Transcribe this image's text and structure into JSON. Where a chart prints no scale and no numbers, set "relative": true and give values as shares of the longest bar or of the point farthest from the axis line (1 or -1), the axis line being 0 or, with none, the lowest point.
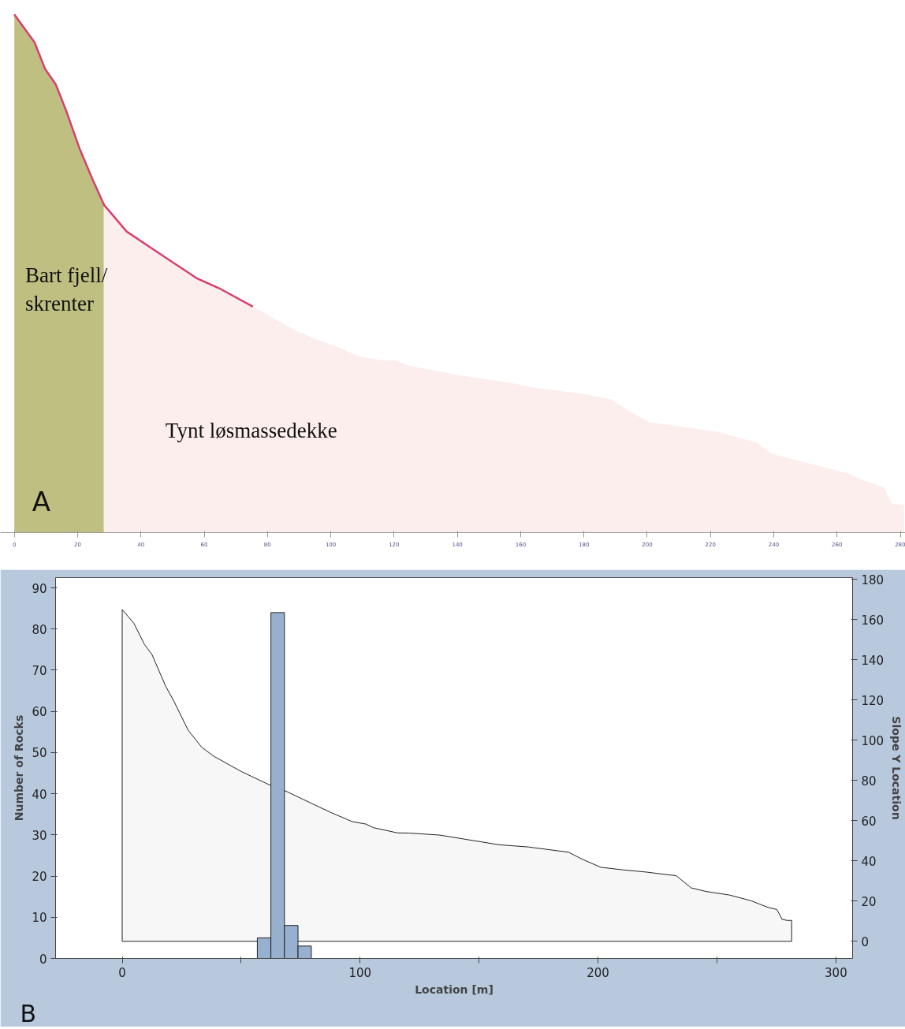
{
  "chart_data": [
    {
      "type": "area",
      "relative": true,
      "xlim": [
        -4.4,
        281.6
      ],
      "xticks": [
        0,
        20,
        40,
        60,
        80,
        100,
        120,
        140,
        160,
        180,
        200,
        220,
        240,
        260,
        280
      ],
      "annotations": [
        "A"
      ],
      "series": [
        {
          "name": "Bart fjell/\nskrenter",
          "color": "#bfbf82",
          "x": [
            0,
            6.4,
            9.7,
            13.1,
            16.4,
            20.5,
            24.7,
            28.3
          ],
          "values": [
            1.0,
            0.946,
            0.895,
            0.865,
            0.814,
            0.743,
            0.682,
            0.632
          ]
        },
        {
          "name": "Tynt løsmassedekke",
          "color": "#fdeeee",
          "x": [
            28.3,
            35.5,
            45.5,
            57.9,
            64.6,
            75.4,
            88.6,
            95.3,
            102.4,
            108.9,
            116.0,
            120.2,
            124.9,
            140.3,
            156.9,
            164.0,
            179.5,
            188.4,
            194.9,
            200.8,
            209.1,
            222.8,
            234.6,
            239.4,
            249.4,
            263.6,
            266.6,
            274.9,
            277.3,
            281.2
          ],
          "values": [
            0.632,
            0.581,
            0.54,
            0.49,
            0.472,
            0.436,
            0.391,
            0.373,
            0.358,
            0.34,
            0.333,
            0.333,
            0.322,
            0.304,
            0.289,
            0.28,
            0.268,
            0.258,
            0.232,
            0.213,
            0.206,
            0.194,
            0.174,
            0.152,
            0.136,
            0.114,
            0.105,
            0.087,
            0.056,
            0.054
          ]
        },
        {
          "type": "line",
          "color": "#d6406f",
          "x": [
            0,
            6.4,
            9.7,
            13.1,
            16.4,
            20.5,
            24.7,
            28.4,
            35.5,
            45.5,
            57.9,
            64.6,
            75.4
          ],
          "values": [
            1.0,
            0.946,
            0.895,
            0.865,
            0.814,
            0.743,
            0.682,
            0.632,
            0.581,
            0.54,
            0.49,
            0.472,
            0.436
          ]
        }
      ]
    },
    {
      "type": "histogram",
      "xlabel": "Location [m]",
      "ylabel": "Number of Rocks",
      "y2label": "Slope Y Location",
      "annotations": [
        "B"
      ],
      "bins": [
        56.8,
        62.5,
        68.2,
        73.9,
        79.5
      ],
      "values": [
        5,
        84,
        8,
        3
      ],
      "color": "#98b0cf",
      "xlim": [
        -28,
        307
      ],
      "xticks": [
        0,
        {
          "value": 50,
          "label": null
        },
        100,
        {
          "value": 150,
          "label": null
        },
        200,
        {
          "value": 250,
          "label": null
        },
        300
      ],
      "ylim": [
        0,
        92.5
      ],
      "yticks": [
        0,
        10,
        20,
        30,
        40,
        50,
        60,
        70,
        80,
        90
      ],
      "y2lim": [
        -8.5,
        180.8
      ],
      "y2ticks": [
        0,
        20,
        40,
        60,
        80,
        100,
        120,
        140,
        160,
        180
      ],
      "series": [
        {
          "type": "area",
          "axis": "y2",
          "color": "#f7f7f7",
          "x": [
            0,
            4.9,
            9.4,
            12.5,
            18.2,
            21.8,
            27.7,
            33.4,
            38.5,
            49.9,
            61.3,
            68.9,
            79.0,
            87.8,
            96.7,
            102.4,
            105.6,
            115.7,
            120.8,
            133.5,
            158.4,
            170.8,
            187.6,
            193.2,
            201.2,
            210.6,
            220.5,
            232.9,
            239.1,
            245.3,
            255.3,
            264.0,
            271.4,
            275.2,
            277.4,
            279.5,
            281.4
          ],
          "values": [
            164.9,
            158.1,
            147.5,
            142.6,
            127.0,
            119.2,
            105.0,
            96.5,
            92.0,
            84.5,
            78.1,
            74.6,
            68.9,
            64.0,
            59.5,
            58.3,
            56.5,
            53.9,
            53.8,
            52.8,
            48.0,
            46.9,
            44.3,
            40.9,
            36.8,
            35.5,
            34.4,
            32.6,
            26.6,
            24.8,
            23.0,
            20.3,
            16.9,
            15.8,
            10.9,
            10.4,
            10.4
          ]
        }
      ]
    }
  ]
}
